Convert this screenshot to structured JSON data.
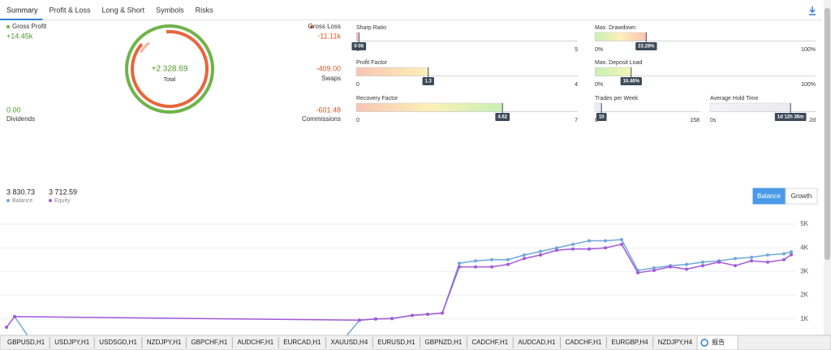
{
  "tabs": [
    "Summary",
    "Profit & Loss",
    "Long & Short",
    "Symbols",
    "Risks"
  ],
  "summary": {
    "gross_profit": {
      "label": "Gross Profit",
      "value": "+14.45k"
    },
    "dividends": {
      "label": "Dividends",
      "value": "0.00"
    },
    "total": {
      "label": "Total",
      "value": "+2 328.69"
    },
    "gross_loss": {
      "label": "Gross Loss",
      "value": "-11.11k"
    },
    "swaps": {
      "label": "Swaps",
      "value": "-409.00"
    },
    "commissions": {
      "label": "Commissions",
      "value": "-601.48"
    }
  },
  "metrics": [
    {
      "label": "Sharp Ratio",
      "value": 0.06,
      "min": 0,
      "max": 5,
      "colors": [
        "#f6b8b0",
        "#fbe0d8"
      ]
    },
    {
      "label": "Profit Factor",
      "value": 1.3,
      "min": 0,
      "max": 4,
      "colors": [
        "#f8c4b4",
        "#fdf0b8"
      ]
    },
    {
      "label": "Recovery Factor",
      "value": 4.62,
      "min": 0,
      "max": 7,
      "colors": [
        "#f8c4b4",
        "#fdf0b8",
        "#c9efb4"
      ]
    },
    {
      "label": "Max. Drawdown",
      "value": 23.28,
      "value_label": "23.28%",
      "min": {
        "value": 0,
        "label": "0%"
      },
      "max": {
        "value": 100,
        "label": "100%"
      },
      "colors": [
        "#c9efb4",
        "#fdf0b8",
        "#f8c4b4"
      ]
    },
    {
      "label": "Max. Deposit Load",
      "value": 16.46,
      "value_label": "16.46%",
      "min": {
        "value": 0,
        "label": "0%"
      },
      "max": {
        "value": 100,
        "label": "100%"
      },
      "colors": [
        "#c9efb4",
        "#f4f6b8"
      ]
    },
    {
      "label": "Trades per Week",
      "value": 10,
      "min": 0,
      "max": 158,
      "colors": [
        "#f0f2f8",
        "#e4e8f2"
      ]
    },
    {
      "label": "Average Hold Time",
      "value": 36.6,
      "value_label": "1d 12h 36m",
      "min": {
        "value": 0,
        "label": "0s"
      },
      "max": {
        "value": 48,
        "label": "2d"
      },
      "colors": [
        "#f4f4f6",
        "#ebebef"
      ]
    }
  ],
  "chart_data": {
    "type": "line",
    "buttons": [
      "Balance",
      "Growth"
    ],
    "xlim": [
      0,
      1010
    ],
    "ylim": [
      0,
      5480
    ],
    "yticks": [
      {
        "value": 1000,
        "label": "1K"
      },
      {
        "value": 2000,
        "label": "2K"
      },
      {
        "value": 3000,
        "label": "3K"
      },
      {
        "value": 4000,
        "label": "4K"
      },
      {
        "value": 5000,
        "label": "5K"
      }
    ],
    "grid": true,
    "series": [
      {
        "name": "Balance",
        "current": "3 830.73",
        "color": "#6fa8dc",
        "x": [
          18,
          40,
          420,
          443,
          463,
          483,
          508,
          527,
          545,
          566,
          586,
          606,
          626,
          646,
          666,
          686,
          706,
          726,
          746,
          766,
          786,
          806,
          826,
          846,
          866,
          886,
          906,
          926,
          946,
          966,
          975
        ],
        "values": [
          1100,
          0,
          0,
          950,
          1000,
          1020,
          1150,
          1200,
          1250,
          3350,
          3450,
          3500,
          3500,
          3700,
          3850,
          4000,
          4150,
          4300,
          4300,
          4350,
          3050,
          3150,
          3250,
          3300,
          3400,
          3450,
          3550,
          3600,
          3700,
          3750,
          3830.73
        ]
      },
      {
        "name": "Equity",
        "current": "3 712.59",
        "color": "#a259d9",
        "x": [
          8,
          18,
          443,
          463,
          483,
          508,
          527,
          545,
          566,
          586,
          606,
          626,
          646,
          666,
          686,
          706,
          726,
          746,
          766,
          786,
          806,
          826,
          846,
          866,
          886,
          906,
          926,
          946,
          966,
          975
        ],
        "values": [
          650,
          1100,
          950,
          1000,
          1020,
          1150,
          1200,
          1250,
          3200,
          3200,
          3200,
          3300,
          3550,
          3700,
          3900,
          3950,
          3950,
          4000,
          4150,
          2950,
          3050,
          3200,
          3100,
          3250,
          3400,
          3250,
          3450,
          3400,
          3500,
          3712.59
        ]
      }
    ]
  },
  "bottom_tabs": [
    "GBPUSD,H1",
    "USDJPY,H1",
    "USDSGD,H1",
    "NZDJPY,H1",
    "GBPCHF,H1",
    "AUDCHF,H1",
    "EURCAD,H1",
    "XAUUSD,H4",
    "EURUSD,H1",
    "GBPNZD,H1",
    "CADCHF,H1",
    "AUDCAD,H1",
    "CADCHF,H1",
    "EURGBP,H4",
    "NZDJPY,H4",
    "报告"
  ]
}
